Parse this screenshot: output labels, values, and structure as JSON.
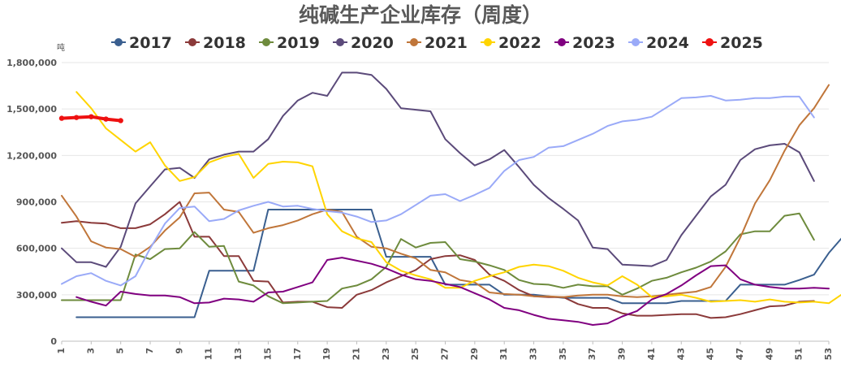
{
  "chart_data": {
    "type": "line",
    "title": "纯碱生产企业库存（周度）",
    "ylabel": "吨",
    "xlabel": "",
    "xlim": [
      1,
      53
    ],
    "ylim": [
      0,
      1800000
    ],
    "x_ticks": [
      1,
      3,
      5,
      7,
      9,
      11,
      13,
      15,
      17,
      19,
      21,
      23,
      25,
      27,
      29,
      31,
      33,
      35,
      37,
      39,
      41,
      43,
      45,
      47,
      49,
      51,
      53
    ],
    "y_ticks": [
      0,
      300000,
      600000,
      900000,
      1200000,
      1500000,
      1800000
    ],
    "y_tick_labels": [
      "0",
      "300,000",
      "600,000",
      "900,000",
      "1,200,000",
      "1,500,000",
      "1,800,000"
    ],
    "grid": "horizontal",
    "legend_position": "top",
    "series": [
      {
        "name": "2017",
        "color": "#3a5f8f",
        "start_week": 2,
        "values": [
          155000,
          155000,
          155000,
          155000,
          155000,
          155000,
          155000,
          155000,
          155000,
          455000,
          455000,
          455000,
          455000,
          850000,
          850000,
          850000,
          850000,
          850000,
          850000,
          850000,
          850000,
          545000,
          545000,
          545000,
          545000,
          365000,
          365000,
          365000,
          365000,
          300000,
          300000,
          300000,
          290000,
          280000,
          280000,
          280000,
          280000,
          245000,
          245000,
          245000,
          245000,
          260000,
          260000,
          260000,
          260000,
          365000,
          365000,
          365000,
          365000,
          395000,
          430000,
          570000,
          680000
        ]
      },
      {
        "name": "2018",
        "color": "#8b3a3a",
        "start_week": 1,
        "values": [
          765000,
          775000,
          765000,
          760000,
          730000,
          730000,
          755000,
          820000,
          900000,
          675000,
          675000,
          550000,
          550000,
          390000,
          385000,
          250000,
          255000,
          255000,
          220000,
          215000,
          300000,
          330000,
          380000,
          420000,
          460000,
          530000,
          550000,
          555000,
          525000,
          430000,
          390000,
          330000,
          290000,
          285000,
          285000,
          240000,
          215000,
          215000,
          180000,
          165000,
          165000,
          170000,
          175000,
          175000,
          150000,
          155000,
          175000,
          200000,
          225000,
          230000,
          255000,
          260000
        ]
      },
      {
        "name": "2019",
        "color": "#6e8b3d",
        "start_week": 1,
        "values": [
          265000,
          265000,
          265000,
          265000,
          265000,
          560000,
          530000,
          595000,
          600000,
          705000,
          610000,
          615000,
          385000,
          360000,
          290000,
          245000,
          250000,
          255000,
          260000,
          340000,
          360000,
          400000,
          480000,
          660000,
          605000,
          635000,
          640000,
          530000,
          515000,
          490000,
          460000,
          395000,
          370000,
          365000,
          345000,
          365000,
          355000,
          355000,
          300000,
          340000,
          390000,
          410000,
          445000,
          475000,
          515000,
          580000,
          690000,
          710000,
          710000,
          810000,
          825000,
          655000
        ]
      },
      {
        "name": "2020",
        "color": "#5b4a7a",
        "start_week": 1,
        "values": [
          600000,
          510000,
          510000,
          480000,
          610000,
          890000,
          1000000,
          1110000,
          1120000,
          1055000,
          1175000,
          1205000,
          1225000,
          1225000,
          1305000,
          1455000,
          1555000,
          1605000,
          1585000,
          1735000,
          1735000,
          1720000,
          1630000,
          1505000,
          1495000,
          1485000,
          1305000,
          1215000,
          1135000,
          1175000,
          1235000,
          1125000,
          1010000,
          925000,
          855000,
          780000,
          605000,
          595000,
          495000,
          490000,
          485000,
          525000,
          685000,
          810000,
          935000,
          1010000,
          1170000,
          1240000,
          1265000,
          1275000,
          1220000,
          1035000
        ]
      },
      {
        "name": "2021",
        "color": "#c0763a",
        "start_week": 1,
        "values": [
          940000,
          805000,
          645000,
          605000,
          595000,
          545000,
          610000,
          715000,
          800000,
          955000,
          960000,
          850000,
          835000,
          700000,
          730000,
          750000,
          780000,
          820000,
          850000,
          835000,
          675000,
          610000,
          600000,
          565000,
          535000,
          460000,
          445000,
          395000,
          380000,
          315000,
          305000,
          300000,
          290000,
          290000,
          285000,
          295000,
          300000,
          300000,
          290000,
          285000,
          290000,
          300000,
          310000,
          320000,
          350000,
          480000,
          670000,
          890000,
          1040000,
          1230000,
          1395000,
          1505000,
          1655000
        ]
      },
      {
        "name": "2022",
        "color": "#ffd400",
        "start_week": 2,
        "values": [
          1610000,
          1505000,
          1375000,
          1300000,
          1225000,
          1285000,
          1135000,
          1035000,
          1060000,
          1155000,
          1190000,
          1210000,
          1055000,
          1145000,
          1160000,
          1155000,
          1130000,
          820000,
          710000,
          665000,
          640000,
          510000,
          455000,
          425000,
          400000,
          345000,
          345000,
          390000,
          420000,
          445000,
          480000,
          495000,
          485000,
          455000,
          410000,
          380000,
          360000,
          420000,
          365000,
          285000,
          290000,
          300000,
          280000,
          255000,
          260000,
          265000,
          255000,
          270000,
          255000,
          250000,
          255000,
          245000,
          310000
        ]
      },
      {
        "name": "2023",
        "color": "#800080",
        "start_week": 2,
        "values": [
          285000,
          255000,
          230000,
          320000,
          305000,
          295000,
          295000,
          285000,
          245000,
          250000,
          275000,
          270000,
          255000,
          315000,
          320000,
          350000,
          380000,
          525000,
          540000,
          520000,
          500000,
          470000,
          430000,
          400000,
          390000,
          370000,
          350000,
          310000,
          270000,
          215000,
          200000,
          170000,
          145000,
          135000,
          125000,
          105000,
          115000,
          160000,
          195000,
          270000,
          305000,
          360000,
          425000,
          485000,
          490000,
          400000,
          365000,
          350000,
          340000,
          340000,
          345000,
          340000
        ]
      },
      {
        "name": "2024",
        "color": "#9aaaf8",
        "start_week": 1,
        "values": [
          370000,
          420000,
          440000,
          390000,
          360000,
          420000,
          600000,
          760000,
          860000,
          870000,
          775000,
          790000,
          845000,
          875000,
          900000,
          870000,
          875000,
          855000,
          840000,
          830000,
          805000,
          770000,
          780000,
          820000,
          880000,
          940000,
          950000,
          905000,
          945000,
          990000,
          1100000,
          1170000,
          1190000,
          1250000,
          1260000,
          1300000,
          1340000,
          1390000,
          1420000,
          1430000,
          1450000,
          1510000,
          1570000,
          1575000,
          1585000,
          1555000,
          1560000,
          1570000,
          1570000,
          1580000,
          1580000,
          1445000
        ]
      },
      {
        "name": "2025",
        "color": "#ee1111",
        "start_week": 1,
        "values": [
          1440000,
          1445000,
          1450000,
          1435000,
          1425000
        ]
      }
    ]
  }
}
